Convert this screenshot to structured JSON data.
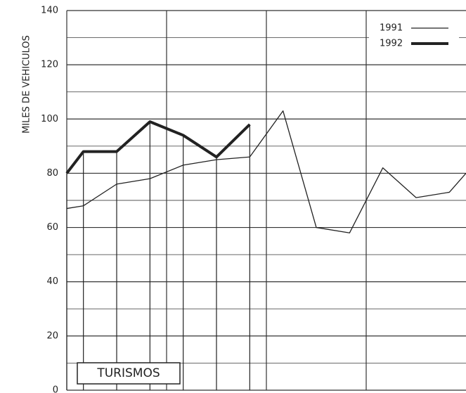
{
  "chart_data": {
    "type": "line",
    "ylabel": "MILES DE VEHICULOS",
    "annotation": "TURISMOS",
    "x": [
      0,
      0.5,
      1.5,
      2.5,
      3.5,
      4.5,
      5.5,
      6.5,
      7.5,
      8.5,
      9.5,
      10.5,
      11.5,
      12
    ],
    "xlim": [
      0,
      12
    ],
    "xticks": [
      3,
      6,
      9
    ],
    "ylim": [
      0,
      140
    ],
    "yticks": [
      0,
      20,
      40,
      60,
      80,
      100,
      120,
      140
    ],
    "minor_yticks": [
      10,
      30,
      50,
      70,
      90,
      110,
      130
    ],
    "grid": true,
    "legend": "upper right",
    "series": [
      {
        "name": "1991",
        "color": "#222222",
        "values": [
          67,
          68,
          76,
          78,
          83,
          85,
          86,
          103,
          60,
          58,
          82,
          71,
          73,
          80
        ]
      },
      {
        "name": "1992",
        "color": "#222222",
        "values": [
          80,
          88,
          88,
          99,
          94,
          86,
          98,
          null,
          null,
          null,
          null,
          null,
          null,
          null
        ]
      }
    ]
  }
}
